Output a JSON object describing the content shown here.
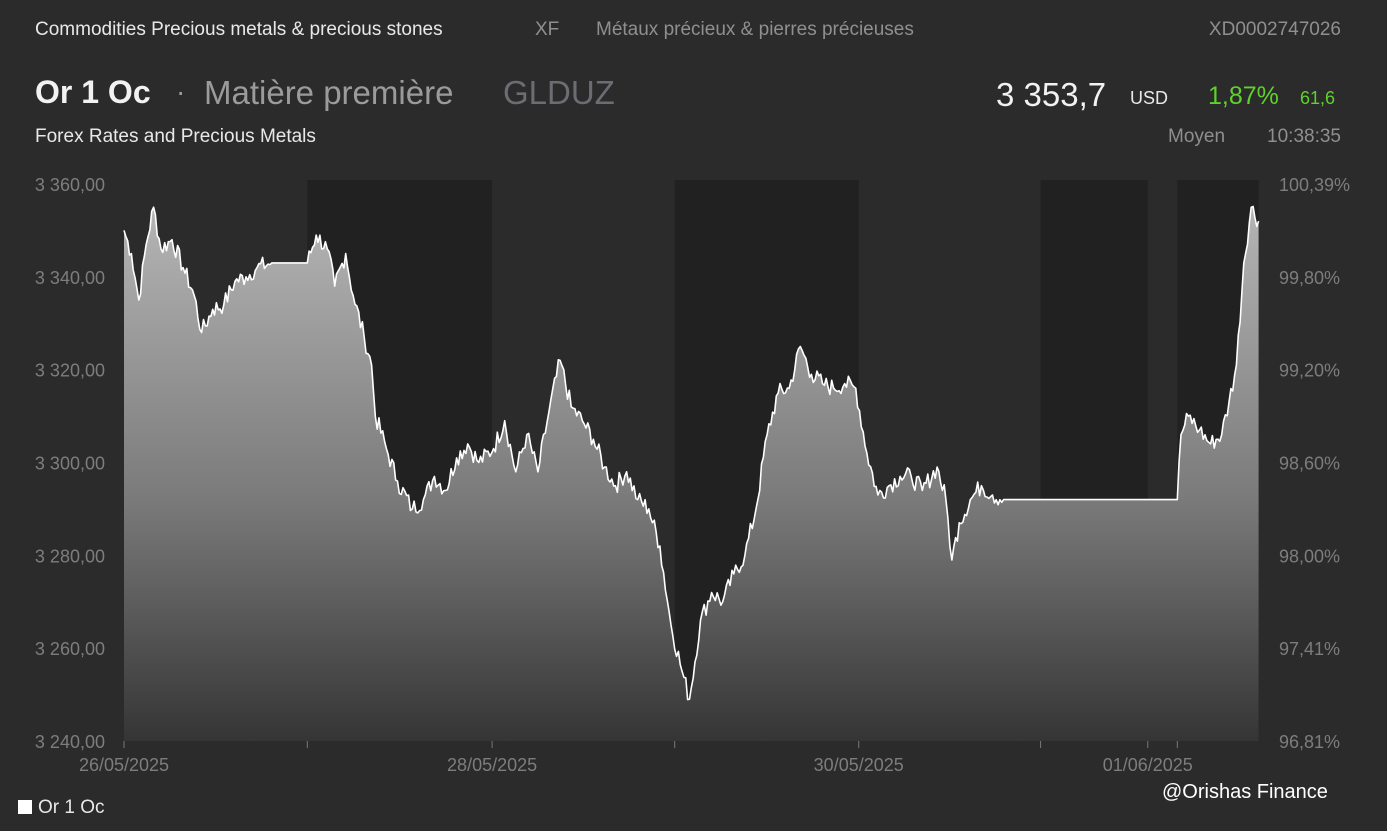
{
  "header": {
    "category": "Commodities Precious metals & precious stones",
    "exchange": "XF",
    "category_fr": "Métaux précieux & pierres précieuses",
    "isin": "XD0002747026"
  },
  "instrument": {
    "name": "Or 1 Oc",
    "separator": "·",
    "type": "Matière première",
    "ticker": "GLDUZ",
    "subtitle": "Forex Rates and Precious Metals"
  },
  "quote": {
    "price": "3 353,7",
    "currency": "USD",
    "change_pct": "1,87%",
    "change_abs": "61,6",
    "kind": "Moyen",
    "time": "10:38:35"
  },
  "colors": {
    "background": "#2b2b2b",
    "closed_band": "#212121",
    "line": "#ffffff",
    "positive": "#5fd12a"
  },
  "watermark": "@Orishas Finance",
  "chart_data": {
    "type": "area",
    "series": [
      {
        "name": "Or 1 Oc",
        "points": [
          [
            0.0,
            3350
          ],
          [
            0.1,
            3345
          ],
          [
            0.2,
            3335
          ],
          [
            0.3,
            3347
          ],
          [
            0.4,
            3355
          ],
          [
            0.5,
            3346
          ],
          [
            0.65,
            3348
          ],
          [
            0.8,
            3342
          ],
          [
            0.95,
            3336
          ],
          [
            1.05,
            3328
          ],
          [
            1.2,
            3333
          ],
          [
            1.35,
            3334
          ],
          [
            1.5,
            3339
          ],
          [
            1.65,
            3340
          ],
          [
            1.8,
            3342
          ],
          [
            2.0,
            3343
          ],
          [
            2.48,
            3343
          ],
          [
            2.48,
            3343
          ],
          [
            2.6,
            3349
          ],
          [
            2.75,
            3346
          ],
          [
            2.85,
            3338
          ],
          [
            3.0,
            3345
          ],
          [
            3.1,
            3336
          ],
          [
            3.25,
            3327
          ],
          [
            3.35,
            3321
          ],
          [
            3.4,
            3310
          ],
          [
            3.55,
            3303
          ],
          [
            3.7,
            3296
          ],
          [
            3.9,
            3290
          ],
          [
            4.05,
            3292
          ],
          [
            4.2,
            3297
          ],
          [
            4.35,
            3294
          ],
          [
            4.5,
            3301
          ],
          [
            4.65,
            3304
          ],
          [
            4.8,
            3300
          ],
          [
            5.0,
            3303
          ],
          [
            5.15,
            3309
          ],
          [
            5.3,
            3298
          ],
          [
            5.45,
            3306
          ],
          [
            5.6,
            3298
          ],
          [
            5.75,
            3311
          ],
          [
            5.9,
            3322
          ],
          [
            6.05,
            3312
          ],
          [
            6.2,
            3309
          ],
          [
            6.35,
            3305
          ],
          [
            6.5,
            3299
          ],
          [
            6.65,
            3295
          ],
          [
            6.8,
            3298
          ],
          [
            6.95,
            3292
          ],
          [
            7.1,
            3290
          ],
          [
            7.25,
            3282
          ],
          [
            7.4,
            3265
          ],
          [
            7.55,
            3255
          ],
          [
            7.65,
            3249
          ],
          [
            7.8,
            3266
          ],
          [
            7.95,
            3272
          ],
          [
            8.1,
            3270
          ],
          [
            8.25,
            3276
          ],
          [
            8.4,
            3280
          ],
          [
            8.55,
            3290
          ],
          [
            8.7,
            3306
          ],
          [
            8.85,
            3315
          ],
          [
            9.0,
            3316
          ],
          [
            9.15,
            3325
          ],
          [
            9.3,
            3319
          ],
          [
            9.45,
            3317
          ],
          [
            9.6,
            3316
          ],
          [
            9.75,
            3317
          ],
          [
            9.9,
            3316
          ],
          [
            10.05,
            3302
          ],
          [
            10.2,
            3293
          ],
          [
            10.35,
            3295
          ],
          [
            10.5,
            3297
          ],
          [
            10.65,
            3297
          ],
          [
            10.8,
            3294
          ],
          [
            11.0,
            3299
          ],
          [
            11.12,
            3292
          ],
          [
            11.2,
            3279
          ],
          [
            11.3,
            3287
          ],
          [
            11.45,
            3292
          ],
          [
            11.6,
            3295
          ],
          [
            11.75,
            3293
          ],
          [
            11.9,
            3292
          ],
          [
            11.9,
            3292
          ],
          [
            14.25,
            3292
          ],
          [
            14.3,
            3306
          ],
          [
            14.4,
            3310
          ],
          [
            14.55,
            3307
          ],
          [
            14.7,
            3304
          ],
          [
            14.85,
            3306
          ],
          [
            14.95,
            3313
          ],
          [
            15.05,
            3321
          ],
          [
            15.15,
            3343
          ],
          [
            15.25,
            3355
          ],
          [
            15.35,
            3352
          ]
        ]
      }
    ],
    "x_ticks": [
      {
        "label": "26/05/2025",
        "x": 0
      },
      {
        "label": "",
        "x": 2.48
      },
      {
        "label": "28/05/2025",
        "x": 4.98
      },
      {
        "label": "",
        "x": 7.45
      },
      {
        "label": "30/05/2025",
        "x": 9.94
      },
      {
        "label": "",
        "x": 12.4
      },
      {
        "label": "01/06/2025",
        "x": 13.85
      },
      {
        "label": "",
        "x": 14.25
      }
    ],
    "closed_periods": [
      [
        2.48,
        4.98
      ],
      [
        7.45,
        9.94
      ],
      [
        12.4,
        13.85
      ],
      [
        14.25,
        15.35
      ]
    ],
    "x_range": [
      0,
      15.45
    ],
    "y_left": {
      "range": [
        3240,
        3360
      ],
      "ticks": [
        "3 360,00",
        "3 340,00",
        "3 320,00",
        "3 300,00",
        "3 280,00",
        "3 260,00",
        "3 240,00"
      ],
      "values": [
        3360,
        3340,
        3320,
        3300,
        3280,
        3260,
        3240
      ]
    },
    "y_right": {
      "ticks": [
        "100,39%",
        "99,80%",
        "99,20%",
        "98,60%",
        "98,00%",
        "97,41%",
        "96,81%"
      ]
    },
    "legend": {
      "label": "Or 1 Oc",
      "placement": "bottom-left"
    }
  }
}
